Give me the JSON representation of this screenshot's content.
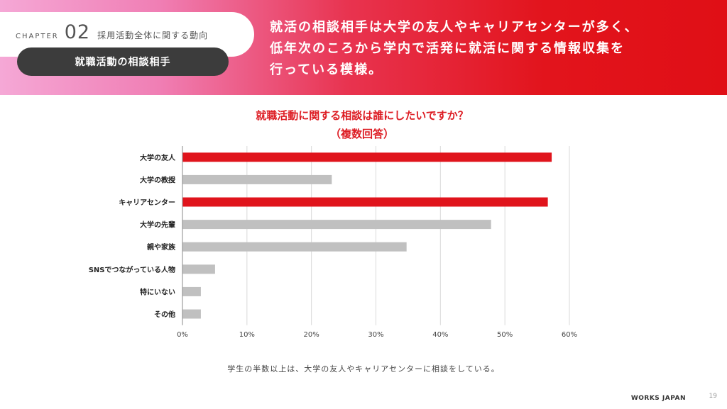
{
  "header": {
    "chapter_word": "CHAPTER",
    "chapter_number": "02",
    "chapter_title": "採用活動全体に関する動向",
    "section_pill": "就職活動の相談相手",
    "headline_lines": [
      "就活の相談相手は大学の友人やキャリアセンターが多く、",
      "低年次のころから学内で活発に就活に関する情報収集を",
      "行っている模様。"
    ]
  },
  "chart_title_lines": [
    "就職活動に関する相談は誰にしたいですか？",
    "（複数回答）"
  ],
  "colors": {
    "highlight": "#e0141c",
    "default": "#c0c0c0",
    "grid": "#d9d9d9"
  },
  "chart_data": {
    "type": "bar",
    "orientation": "horizontal",
    "title": "就職活動に関する相談は誰にしたいですか？（複数回答）",
    "categories": [
      "大学の友人",
      "大学の教授",
      "キャリアセンター",
      "大学の先輩",
      "親や家族",
      "SNSでつながっている人物",
      "特にいない",
      "その他"
    ],
    "values": [
      57.2,
      23.1,
      56.6,
      47.8,
      34.7,
      5.0,
      2.8,
      2.8
    ],
    "highlighted": [
      true,
      false,
      true,
      false,
      false,
      false,
      false,
      false
    ],
    "xlim": [
      0,
      60
    ],
    "xticks": [
      "0%",
      "10%",
      "20%",
      "30%",
      "40%",
      "50%",
      "60%"
    ],
    "xlabel": "",
    "ylabel": "",
    "grid": true
  },
  "footnote": "学生の半数以上は、大学の友人やキャリアセンターに相談をしている。",
  "logo": "WORKS JAPAN",
  "page_number": "19"
}
